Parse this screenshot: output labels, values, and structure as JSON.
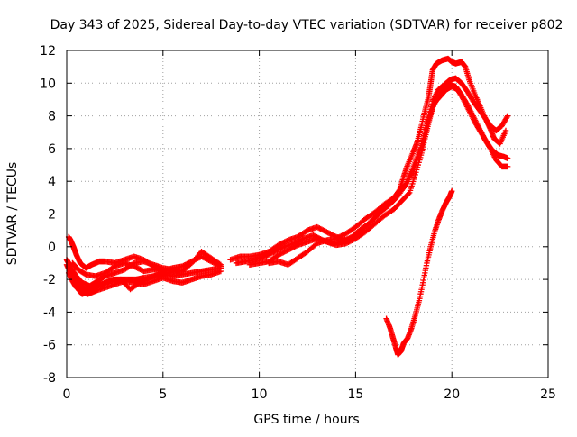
{
  "chart_data": {
    "type": "scatter",
    "title": "Day 343 of 2025, Sidereal Day-to-day VTEC variation (SDTVAR) for receiver p802",
    "xlabel": "GPS time / hours",
    "ylabel": "SDTVAR / TECUs",
    "xlim": [
      0,
      25
    ],
    "ylim": [
      -8,
      12
    ],
    "xticks": [
      0,
      5,
      10,
      15,
      20,
      25
    ],
    "yticks": [
      -8,
      -6,
      -4,
      -2,
      0,
      2,
      4,
      6,
      8,
      10,
      12
    ],
    "grid": true,
    "marker": "+",
    "color": "#ff0000",
    "series": [
      {
        "name": "",
        "tracks": [
          [
            [
              0.0,
              -0.8
            ],
            [
              0.1,
              -1.0
            ],
            [
              0.2,
              -1.4
            ],
            [
              0.3,
              -1.8
            ],
            [
              0.4,
              -2.2
            ],
            [
              0.6,
              -2.6
            ],
            [
              0.8,
              -2.9
            ],
            [
              1.0,
              -2.8
            ],
            [
              1.3,
              -2.6
            ],
            [
              1.6,
              -2.4
            ],
            [
              2.0,
              -2.2
            ],
            [
              2.4,
              -2.0
            ],
            [
              2.8,
              -2.0
            ],
            [
              3.2,
              -2.0
            ],
            [
              3.6,
              -2.0
            ],
            [
              4.0,
              -1.9
            ],
            [
              4.5,
              -1.8
            ],
            [
              5.0,
              -1.7
            ],
            [
              5.5,
              -1.8
            ],
            [
              6.0,
              -1.7
            ],
            [
              6.5,
              -1.6
            ],
            [
              7.0,
              -1.5
            ],
            [
              7.5,
              -1.4
            ],
            [
              8.0,
              -1.3
            ]
          ],
          [
            [
              0.1,
              -1.6
            ],
            [
              0.3,
              -2.1
            ],
            [
              0.5,
              -2.5
            ],
            [
              0.8,
              -2.8
            ],
            [
              1.1,
              -2.9
            ],
            [
              1.5,
              -2.7
            ],
            [
              2.0,
              -2.5
            ],
            [
              2.5,
              -2.3
            ],
            [
              3.0,
              -2.1
            ],
            [
              3.5,
              -2.2
            ],
            [
              4.0,
              -2.3
            ],
            [
              4.5,
              -2.1
            ],
            [
              5.0,
              -1.9
            ],
            [
              5.5,
              -2.1
            ],
            [
              6.0,
              -2.2
            ],
            [
              6.5,
              -2.0
            ],
            [
              7.0,
              -1.8
            ],
            [
              7.5,
              -1.7
            ],
            [
              8.0,
              -1.5
            ]
          ],
          [
            [
              0.2,
              -1.2
            ],
            [
              0.5,
              -1.8
            ],
            [
              0.8,
              -2.2
            ],
            [
              1.2,
              -2.4
            ],
            [
              1.6,
              -2.1
            ],
            [
              2.0,
              -1.8
            ],
            [
              2.5,
              -1.6
            ],
            [
              3.0,
              -1.4
            ],
            [
              3.5,
              -1.0
            ],
            [
              4.0,
              -0.9
            ],
            [
              4.5,
              -1.1
            ],
            [
              5.0,
              -1.3
            ],
            [
              5.5,
              -1.4
            ],
            [
              6.0,
              -1.5
            ],
            [
              6.5,
              -1.0
            ],
            [
              7.0,
              -0.3
            ],
            [
              7.5,
              -0.7
            ],
            [
              8.0,
              -1.1
            ]
          ],
          [
            [
              0.3,
              -1.0
            ],
            [
              0.6,
              -1.4
            ],
            [
              1.0,
              -1.7
            ],
            [
              1.5,
              -1.8
            ],
            [
              2.0,
              -1.6
            ],
            [
              2.5,
              -1.2
            ],
            [
              3.0,
              -1.0
            ],
            [
              3.5,
              -1.2
            ],
            [
              4.0,
              -1.5
            ],
            [
              4.5,
              -1.4
            ],
            [
              5.0,
              -1.5
            ],
            [
              5.5,
              -1.3
            ],
            [
              6.0,
              -1.2
            ],
            [
              6.5,
              -0.9
            ],
            [
              7.0,
              -0.6
            ],
            [
              7.5,
              -0.9
            ],
            [
              8.0,
              -1.2
            ]
          ],
          [
            [
              0.1,
              0.6
            ],
            [
              0.2,
              0.4
            ],
            [
              0.35,
              0.0
            ],
            [
              0.5,
              -0.5
            ],
            [
              0.7,
              -1.0
            ],
            [
              1.0,
              -1.3
            ],
            [
              1.3,
              -1.1
            ],
            [
              1.7,
              -0.9
            ],
            [
              2.0,
              -0.9
            ],
            [
              2.5,
              -1.0
            ],
            [
              3.0,
              -0.8
            ],
            [
              3.5,
              -0.6
            ],
            [
              4.0,
              -0.8
            ],
            [
              4.5,
              -1.2
            ],
            [
              5.0,
              -1.4
            ]
          ],
          [
            [
              0.0,
              -1.1
            ],
            [
              0.2,
              -1.6
            ],
            [
              0.4,
              -2.0
            ],
            [
              0.7,
              -2.4
            ],
            [
              1.0,
              -2.6
            ],
            [
              1.4,
              -2.5
            ],
            [
              1.8,
              -2.3
            ],
            [
              2.3,
              -2.1
            ],
            [
              2.8,
              -2.0
            ],
            [
              3.3,
              -2.6
            ],
            [
              3.8,
              -2.2
            ],
            [
              4.3,
              -1.9
            ],
            [
              4.8,
              -1.7
            ],
            [
              5.3,
              -1.6
            ],
            [
              5.8,
              -1.5
            ]
          ],
          [
            [
              8.5,
              -0.8
            ],
            [
              9.0,
              -0.6
            ],
            [
              9.5,
              -0.6
            ],
            [
              10.0,
              -0.5
            ],
            [
              10.5,
              -0.3
            ],
            [
              11.0,
              0.1
            ],
            [
              11.5,
              0.4
            ],
            [
              12.0,
              0.6
            ],
            [
              12.5,
              1.0
            ],
            [
              13.0,
              1.2
            ],
            [
              13.5,
              0.9
            ],
            [
              14.0,
              0.6
            ],
            [
              14.5,
              0.4
            ],
            [
              15.0,
              0.6
            ],
            [
              15.5,
              1.2
            ],
            [
              16.0,
              1.8
            ],
            [
              16.5,
              2.5
            ],
            [
              17.0,
              3.0
            ],
            [
              17.3,
              3.5
            ],
            [
              17.5,
              4.3
            ],
            [
              17.7,
              5.0
            ],
            [
              18.0,
              5.8
            ],
            [
              18.2,
              6.4
            ],
            [
              18.4,
              7.3
            ],
            [
              18.6,
              8.3
            ],
            [
              18.8,
              9.2
            ],
            [
              18.9,
              10.0
            ],
            [
              19.0,
              10.8
            ],
            [
              19.2,
              11.2
            ],
            [
              19.5,
              11.4
            ],
            [
              19.8,
              11.5
            ],
            [
              20.0,
              11.3
            ],
            [
              20.2,
              11.2
            ],
            [
              20.5,
              11.3
            ],
            [
              20.7,
              11.0
            ],
            [
              20.9,
              10.2
            ],
            [
              21.2,
              9.3
            ],
            [
              21.5,
              8.5
            ],
            [
              21.8,
              7.7
            ],
            [
              22.0,
              7.2
            ],
            [
              22.2,
              6.6
            ],
            [
              22.5,
              6.3
            ],
            [
              22.8,
              7.1
            ]
          ],
          [
            [
              8.8,
              -1.0
            ],
            [
              9.3,
              -0.9
            ],
            [
              9.8,
              -0.8
            ],
            [
              10.3,
              -0.6
            ],
            [
              10.8,
              -0.3
            ],
            [
              11.3,
              0.0
            ],
            [
              11.8,
              0.2
            ],
            [
              12.3,
              0.5
            ],
            [
              12.8,
              0.7
            ],
            [
              13.3,
              0.4
            ],
            [
              13.8,
              0.2
            ],
            [
              14.3,
              0.3
            ],
            [
              14.8,
              0.6
            ],
            [
              15.3,
              1.1
            ],
            [
              15.8,
              1.5
            ],
            [
              16.3,
              2.1
            ],
            [
              16.8,
              2.6
            ],
            [
              17.2,
              3.1
            ],
            [
              17.6,
              3.8
            ],
            [
              17.9,
              4.6
            ],
            [
              18.2,
              5.5
            ],
            [
              18.5,
              6.4
            ],
            [
              18.7,
              7.4
            ],
            [
              18.9,
              8.2
            ],
            [
              19.1,
              8.8
            ],
            [
              19.4,
              9.2
            ],
            [
              19.7,
              9.6
            ],
            [
              20.0,
              9.8
            ],
            [
              20.3,
              9.6
            ],
            [
              20.6,
              9.0
            ],
            [
              20.9,
              8.3
            ],
            [
              21.2,
              7.6
            ],
            [
              21.5,
              7.0
            ],
            [
              21.8,
              6.4
            ],
            [
              22.1,
              5.9
            ],
            [
              22.4,
              5.6
            ],
            [
              22.7,
              5.5
            ],
            [
              22.9,
              5.4
            ]
          ],
          [
            [
              9.5,
              -1.1
            ],
            [
              10.0,
              -1.0
            ],
            [
              10.5,
              -0.9
            ],
            [
              11.0,
              -0.5
            ],
            [
              11.5,
              -0.2
            ],
            [
              12.0,
              0.1
            ],
            [
              12.5,
              0.3
            ],
            [
              13.0,
              0.5
            ],
            [
              13.5,
              0.3
            ],
            [
              14.0,
              0.1
            ],
            [
              14.5,
              0.2
            ],
            [
              15.0,
              0.5
            ],
            [
              15.5,
              0.9
            ],
            [
              16.0,
              1.4
            ],
            [
              16.5,
              1.9
            ],
            [
              17.0,
              2.3
            ],
            [
              17.4,
              2.8
            ],
            [
              17.8,
              3.3
            ],
            [
              18.1,
              4.4
            ],
            [
              18.4,
              5.6
            ],
            [
              18.6,
              6.6
            ],
            [
              18.8,
              7.6
            ],
            [
              19.0,
              8.5
            ],
            [
              19.3,
              9.2
            ],
            [
              19.6,
              9.6
            ],
            [
              19.9,
              9.9
            ],
            [
              20.2,
              9.8
            ],
            [
              20.5,
              9.3
            ],
            [
              20.8,
              8.7
            ],
            [
              21.1,
              8.0
            ],
            [
              21.4,
              7.3
            ],
            [
              21.7,
              6.6
            ],
            [
              22.0,
              6.0
            ],
            [
              22.3,
              5.3
            ],
            [
              22.6,
              4.9
            ],
            [
              22.9,
              4.9
            ]
          ],
          [
            [
              10.5,
              -1.0
            ],
            [
              11.0,
              -0.9
            ],
            [
              11.5,
              -1.1
            ],
            [
              12.0,
              -0.7
            ],
            [
              12.5,
              -0.3
            ],
            [
              13.0,
              0.2
            ],
            [
              13.5,
              0.4
            ],
            [
              14.0,
              0.5
            ],
            [
              14.5,
              0.8
            ],
            [
              15.0,
              1.2
            ],
            [
              15.5,
              1.7
            ],
            [
              16.0,
              2.1
            ],
            [
              16.5,
              2.6
            ],
            [
              17.0,
              3.0
            ],
            [
              17.5,
              3.6
            ],
            [
              18.0,
              4.6
            ],
            [
              18.4,
              6.0
            ],
            [
              18.7,
              7.6
            ],
            [
              19.0,
              8.9
            ],
            [
              19.3,
              9.6
            ],
            [
              19.6,
              9.9
            ],
            [
              19.9,
              10.2
            ],
            [
              20.2,
              10.3
            ],
            [
              20.5,
              10.0
            ],
            [
              20.8,
              9.5
            ],
            [
              21.1,
              8.9
            ],
            [
              21.4,
              8.4
            ],
            [
              21.7,
              7.9
            ],
            [
              22.0,
              7.4
            ],
            [
              22.3,
              7.1
            ],
            [
              22.6,
              7.4
            ],
            [
              22.9,
              8.0
            ]
          ],
          [
            [
              16.6,
              -4.4
            ],
            [
              16.8,
              -5.0
            ],
            [
              16.95,
              -5.6
            ],
            [
              17.1,
              -6.2
            ],
            [
              17.2,
              -6.6
            ],
            [
              17.35,
              -6.4
            ],
            [
              17.5,
              -5.9
            ],
            [
              17.7,
              -5.6
            ],
            [
              17.9,
              -5.0
            ],
            [
              18.1,
              -4.2
            ],
            [
              18.3,
              -3.3
            ],
            [
              18.5,
              -2.2
            ],
            [
              18.7,
              -1.0
            ],
            [
              18.9,
              0.0
            ],
            [
              19.1,
              0.9
            ],
            [
              19.3,
              1.6
            ],
            [
              19.5,
              2.2
            ],
            [
              19.7,
              2.7
            ],
            [
              19.9,
              3.1
            ],
            [
              20.0,
              3.4
            ]
          ]
        ]
      }
    ]
  }
}
